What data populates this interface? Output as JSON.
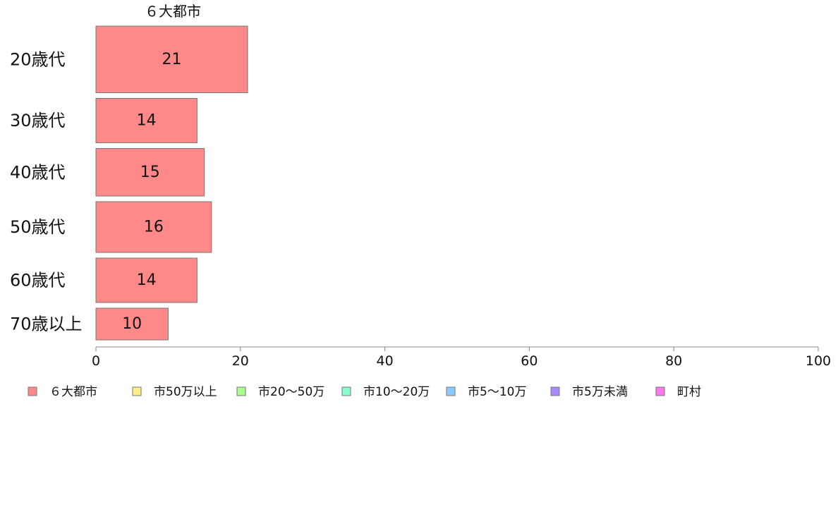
{
  "chart_data": {
    "type": "bar",
    "orientation": "horizontal",
    "layout": "marimekko",
    "categories": [
      "20歳代",
      "30歳代",
      "40歳代",
      "50歳代",
      "60歳代",
      "70歳以上"
    ],
    "series": [
      {
        "name": "６大都市",
        "values": [
          21,
          14,
          15,
          16,
          14,
          10
        ],
        "color": "#ff8888"
      },
      {
        "name": "市50万以上",
        "values": [
          null,
          null,
          null,
          null,
          null,
          null
        ],
        "color": "#ffee88"
      },
      {
        "name": "市20〜50万",
        "values": [
          null,
          null,
          null,
          null,
          null,
          null
        ],
        "color": "#aaff88"
      },
      {
        "name": "市10〜20万",
        "values": [
          null,
          null,
          null,
          null,
          null,
          null
        ],
        "color": "#88ffcc"
      },
      {
        "name": "市5〜10万",
        "values": [
          null,
          null,
          null,
          null,
          null,
          null
        ],
        "color": "#88ccff"
      },
      {
        "name": "市5万未満",
        "values": [
          null,
          null,
          null,
          null,
          null,
          null
        ],
        "color": "#aa88ff"
      },
      {
        "name": "町村",
        "values": [
          null,
          null,
          null,
          null,
          null,
          null
        ],
        "color": "#ff77ee"
      }
    ],
    "xlim": [
      0,
      100
    ],
    "xticks": [
      0,
      20,
      40,
      60,
      80,
      100
    ],
    "column_title": "６大都市",
    "legend_position": "bottom",
    "grid": false
  }
}
